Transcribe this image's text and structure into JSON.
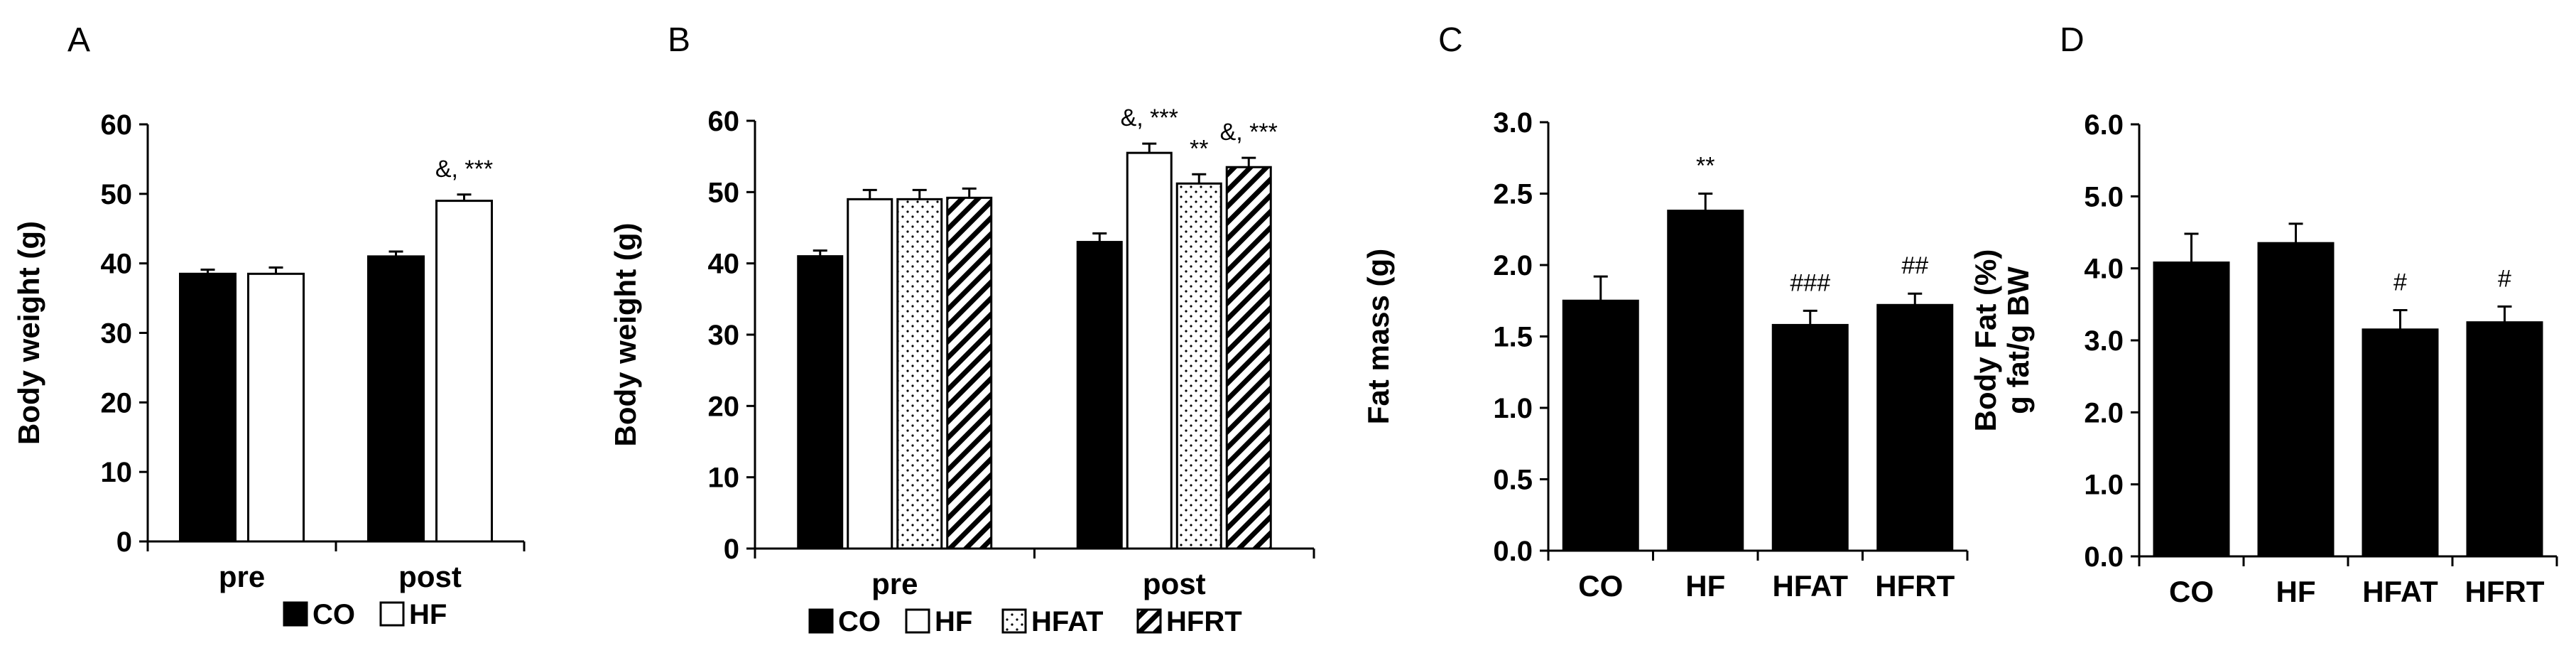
{
  "chart_data": [
    {
      "panel": "A",
      "type": "bar",
      "ylabel": "Body weight (g)",
      "ylim": [
        0,
        60
      ],
      "yticks": [
        "0",
        "10",
        "20",
        "30",
        "40",
        "50",
        "60"
      ],
      "categories": [
        "pre",
        "post"
      ],
      "series": [
        {
          "name": "CO",
          "fill": "solid",
          "values": [
            38.5,
            41.0
          ],
          "errors": [
            0.6,
            0.7
          ]
        },
        {
          "name": "HF",
          "fill": "open",
          "values": [
            38.5,
            49.0
          ],
          "errors": [
            0.9,
            0.9
          ]
        }
      ],
      "annotations": [
        {
          "category": 1,
          "series": 1,
          "text": "&, ***"
        }
      ],
      "legend": "bottom"
    },
    {
      "panel": "B",
      "type": "bar",
      "ylabel": "Body weight (g)",
      "ylim": [
        0,
        60
      ],
      "yticks": [
        "0",
        "10",
        "20",
        "30",
        "40",
        "50",
        "60"
      ],
      "categories": [
        "pre",
        "post"
      ],
      "series": [
        {
          "name": "CO",
          "fill": "solid",
          "values": [
            41.0,
            43.0
          ],
          "errors": [
            0.8,
            1.2
          ]
        },
        {
          "name": "HF",
          "fill": "open",
          "values": [
            49.0,
            55.5
          ],
          "errors": [
            1.3,
            1.3
          ]
        },
        {
          "name": "HFAT",
          "fill": "dots",
          "values": [
            49.0,
            51.2
          ],
          "errors": [
            1.3,
            1.3
          ]
        },
        {
          "name": "HFRT",
          "fill": "hatch",
          "values": [
            49.2,
            53.5
          ],
          "errors": [
            1.3,
            1.3
          ]
        }
      ],
      "annotations": [
        {
          "category": 1,
          "series": 1,
          "text": "&, ***"
        },
        {
          "category": 1,
          "series": 2,
          "text": "**"
        },
        {
          "category": 1,
          "series": 3,
          "text": "&, ***"
        }
      ],
      "legend": "bottom"
    },
    {
      "panel": "C",
      "type": "bar",
      "ylabel": "Fat mass (g)",
      "ylim": [
        0,
        3.0
      ],
      "yticks": [
        "0.0",
        "0.5",
        "1.0",
        "1.5",
        "2.0",
        "2.5",
        "3.0"
      ],
      "categories": [
        "CO",
        "HF",
        "HFAT",
        "HFRT"
      ],
      "values": [
        1.75,
        2.38,
        1.58,
        1.72
      ],
      "errors": [
        0.17,
        0.12,
        0.1,
        0.08
      ],
      "annotations": [
        "",
        "**",
        "###",
        "##"
      ]
    },
    {
      "panel": "D",
      "type": "bar",
      "ylabel_lines": [
        "Body Fat (%)",
        "g fat/g BW"
      ],
      "ylim": [
        0,
        6.0
      ],
      "yticks": [
        "0.0",
        "1.0",
        "2.0",
        "3.0",
        "4.0",
        "5.0",
        "6.0"
      ],
      "categories": [
        "CO",
        "HF",
        "HFAT",
        "HFRT"
      ],
      "values": [
        4.08,
        4.35,
        3.15,
        3.25
      ],
      "errors": [
        0.4,
        0.27,
        0.27,
        0.22
      ],
      "annotations": [
        "",
        "",
        "#",
        "#"
      ]
    }
  ]
}
